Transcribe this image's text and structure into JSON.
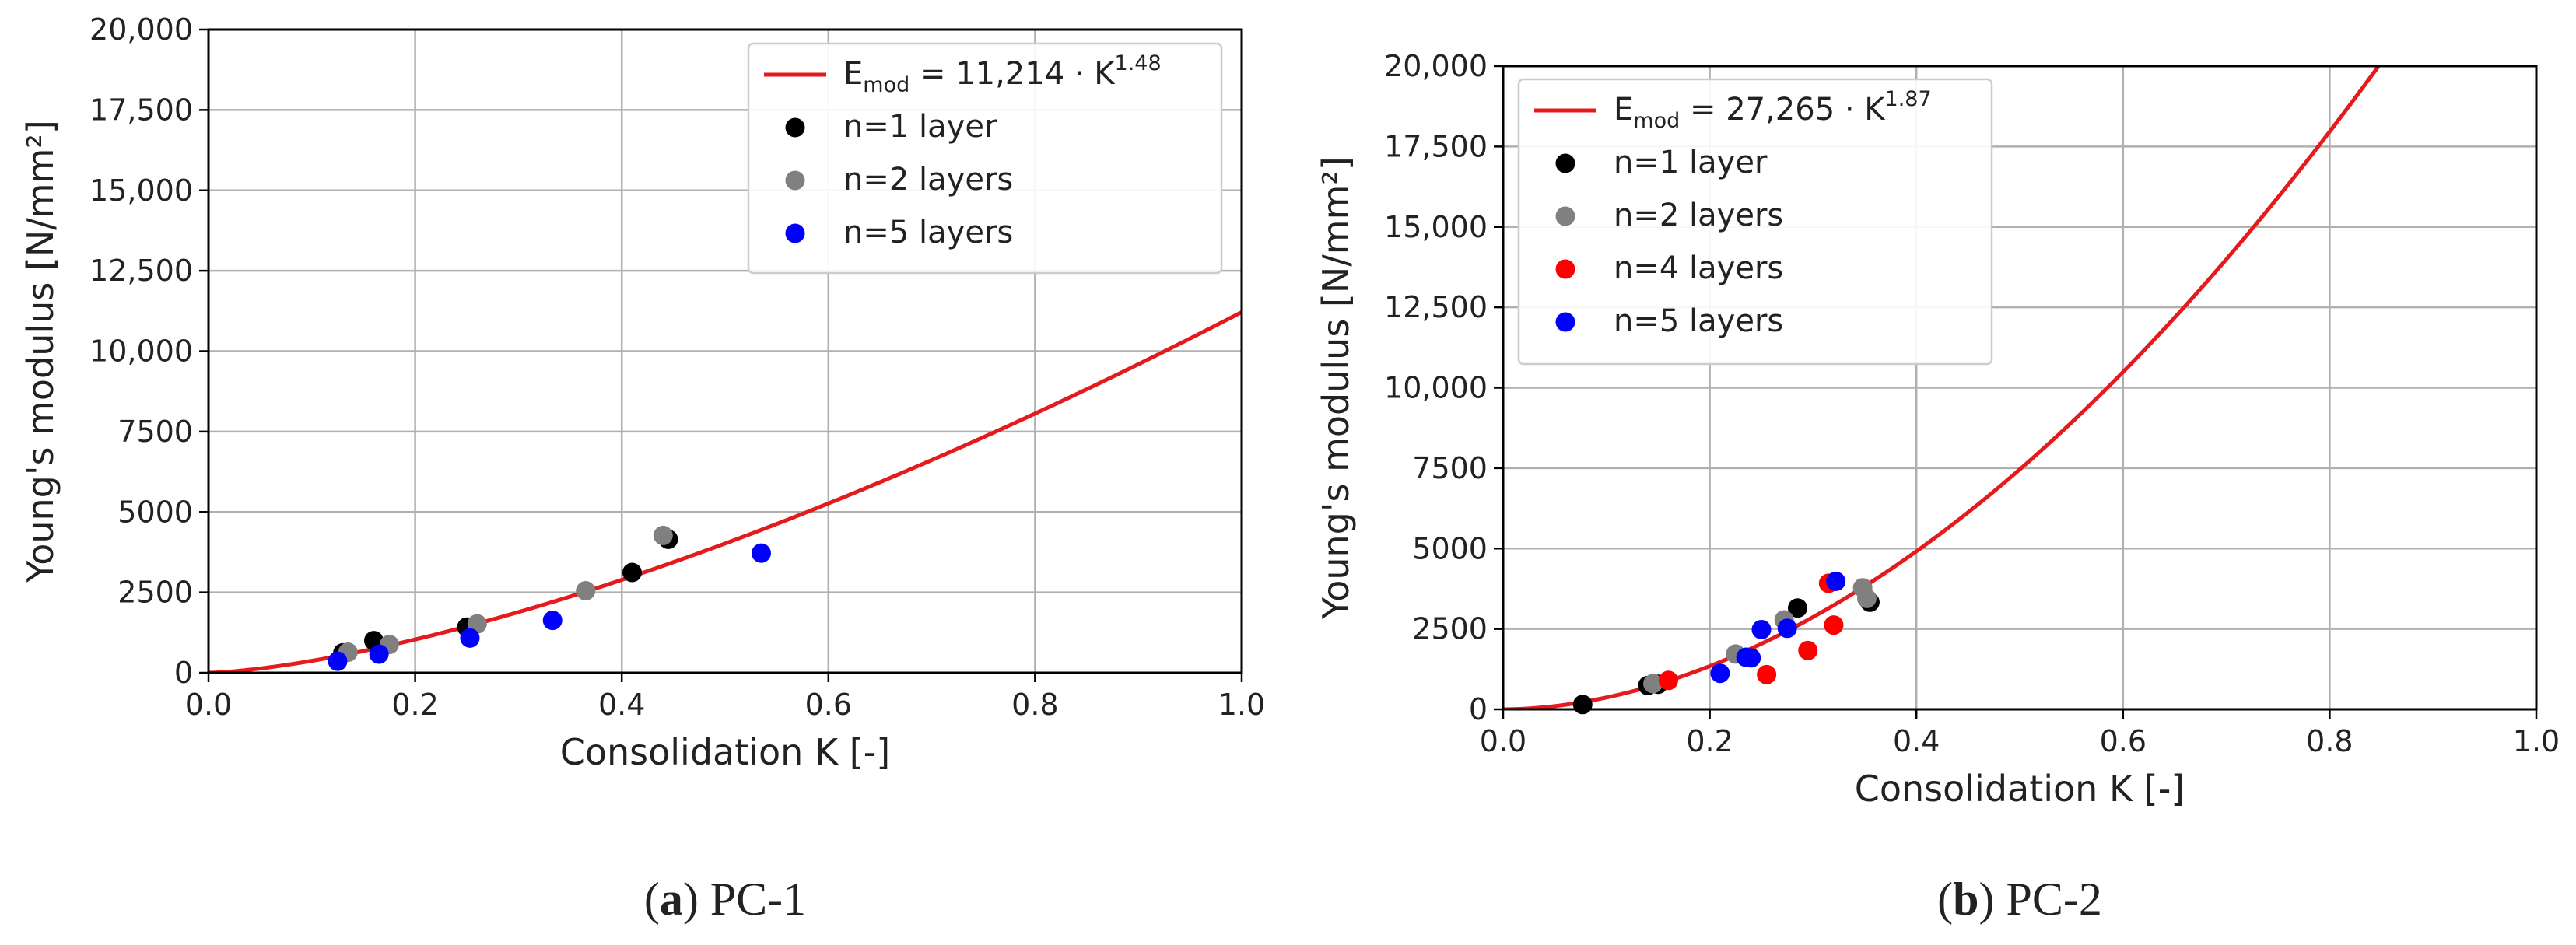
{
  "chart_data": [
    {
      "type": "scatter",
      "panel": "PC-1",
      "caption": {
        "letter": "a",
        "text": "PC-1"
      },
      "xlabel": "Consolidation K [-]",
      "ylabel": "Young's modulus [N/mm²]",
      "xlim": [
        0,
        1
      ],
      "ylim": [
        0,
        20000
      ],
      "xticks": [
        0.0,
        0.2,
        0.4,
        0.6,
        0.8,
        1.0
      ],
      "xtick_labels": [
        "0.0",
        "0.2",
        "0.4",
        "0.6",
        "0.8",
        "1.0"
      ],
      "yticks": [
        0,
        2500,
        5000,
        7500,
        10000,
        12500,
        15000,
        17500,
        20000
      ],
      "ytick_labels": [
        "0",
        "2500",
        "5000",
        "7500",
        "10,000",
        "12,500",
        "15,000",
        "17,500",
        "20,000"
      ],
      "grid": true,
      "legend_position": "top-right",
      "fit": {
        "coefficient": 11214,
        "exponent": 1.48,
        "color": "#e41a1c",
        "label": {
          "base": "E",
          "sub": "mod",
          "eq": " = 11,214 · K",
          "sup": "1.48"
        }
      },
      "series": [
        {
          "name": "n=1 layer",
          "color": "#000000",
          "points": [
            [
              0.13,
              620
            ],
            [
              0.16,
              1000
            ],
            [
              0.25,
              1420
            ],
            [
              0.41,
              3120
            ],
            [
              0.445,
              4150
            ]
          ]
        },
        {
          "name": "n=2 layers",
          "color": "#808080",
          "points": [
            [
              0.135,
              640
            ],
            [
              0.175,
              880
            ],
            [
              0.26,
              1520
            ],
            [
              0.365,
              2550
            ],
            [
              0.44,
              4270
            ]
          ]
        },
        {
          "name": "n=5 layers",
          "color": "#0000ff",
          "points": [
            [
              0.125,
              360
            ],
            [
              0.165,
              580
            ],
            [
              0.253,
              1080
            ],
            [
              0.333,
              1630
            ],
            [
              0.535,
              3720
            ]
          ]
        }
      ]
    },
    {
      "type": "scatter",
      "panel": "PC-2",
      "caption": {
        "letter": "b",
        "text": "PC-2"
      },
      "xlabel": "Consolidation K [-]",
      "ylabel": "Young's modulus [N/mm²]",
      "xlim": [
        0,
        1
      ],
      "ylim": [
        0,
        20000
      ],
      "xticks": [
        0.0,
        0.2,
        0.4,
        0.6,
        0.8,
        1.0
      ],
      "xtick_labels": [
        "0.0",
        "0.2",
        "0.4",
        "0.6",
        "0.8",
        "1.0"
      ],
      "yticks": [
        0,
        2500,
        5000,
        7500,
        10000,
        12500,
        15000,
        17500,
        20000
      ],
      "ytick_labels": [
        "0",
        "2500",
        "5000",
        "7500",
        "10,000",
        "12,500",
        "15,000",
        "17,500",
        "20,000"
      ],
      "grid": true,
      "legend_position": "top-left",
      "fit": {
        "coefficient": 27265,
        "exponent": 1.87,
        "color": "#e41a1c",
        "label": {
          "base": "E",
          "sub": "mod",
          "eq": " = 27,265 · K",
          "sup": "1.87"
        }
      },
      "series": [
        {
          "name": "n=1 layer",
          "color": "#000000",
          "points": [
            [
              0.077,
              150
            ],
            [
              0.14,
              740
            ],
            [
              0.15,
              780
            ],
            [
              0.285,
              3150
            ],
            [
              0.355,
              3330
            ]
          ]
        },
        {
          "name": "n=2 layers",
          "color": "#808080",
          "points": [
            [
              0.145,
              800
            ],
            [
              0.225,
              1720
            ],
            [
              0.272,
              2780
            ],
            [
              0.348,
              3780
            ],
            [
              0.352,
              3450
            ]
          ]
        },
        {
          "name": "n=4 layers",
          "color": "#ff0000",
          "points": [
            [
              0.16,
              900
            ],
            [
              0.255,
              1080
            ],
            [
              0.295,
              1830
            ],
            [
              0.315,
              3920
            ],
            [
              0.32,
              2620
            ]
          ]
        },
        {
          "name": "n=5 layers",
          "color": "#0000ff",
          "points": [
            [
              0.21,
              1120
            ],
            [
              0.235,
              1620
            ],
            [
              0.24,
              1600
            ],
            [
              0.25,
              2480
            ],
            [
              0.275,
              2520
            ],
            [
              0.322,
              3980
            ]
          ]
        }
      ]
    }
  ]
}
